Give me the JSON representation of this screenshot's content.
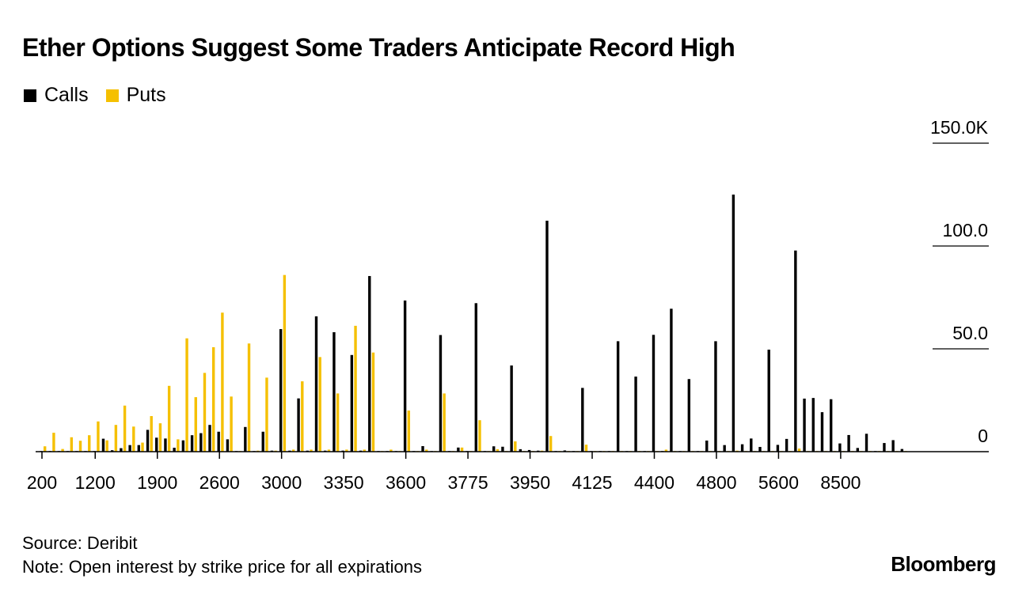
{
  "title": "Ether Options Suggest Some Traders Anticipate Record High",
  "footer": {
    "source": "Source: Deribit",
    "note": "Note: Open interest by strike price for all expirations",
    "logo": "Bloomberg"
  },
  "chart_data": {
    "type": "bar",
    "title": "Ether Options Suggest Some Traders Anticipate Record High",
    "xlabel": "",
    "ylabel": "",
    "ylim": [
      0,
      150
    ],
    "y_ticks": [
      {
        "value": 150,
        "label": "150.0K"
      },
      {
        "value": 100,
        "label": "100.0"
      },
      {
        "value": 50,
        "label": "50.0"
      },
      {
        "value": 0,
        "label": "0"
      }
    ],
    "y_axis_side": "right",
    "legend_placement": "top-left",
    "x_tick_labels": [
      {
        "index": 0,
        "label": "200"
      },
      {
        "index": 6,
        "label": "1200"
      },
      {
        "index": 13,
        "label": "1900"
      },
      {
        "index": 20,
        "label": "2600"
      },
      {
        "index": 27,
        "label": "3000"
      },
      {
        "index": 34,
        "label": "3350"
      },
      {
        "index": 41,
        "label": "3600"
      },
      {
        "index": 48,
        "label": "3775"
      },
      {
        "index": 55,
        "label": "3950"
      },
      {
        "index": 62,
        "label": "4125"
      },
      {
        "index": 69,
        "label": "4400"
      },
      {
        "index": 76,
        "label": "4800"
      },
      {
        "index": 83,
        "label": "5600"
      },
      {
        "index": 90,
        "label": "8500"
      }
    ],
    "series": [
      {
        "name": "Calls",
        "color": "#000000",
        "values": [
          0.3,
          0.3,
          0.3,
          0.3,
          0.3,
          0.3,
          0.3,
          6.3,
          0.7,
          1.7,
          3.2,
          3.2,
          10.6,
          6.8,
          6.4,
          1.9,
          5.5,
          8,
          9,
          13,
          9.7,
          6,
          0.3,
          12,
          0.3,
          9.7,
          0.5,
          59.6,
          0.5,
          25.9,
          0.5,
          65.8,
          0.5,
          58.1,
          0.5,
          47,
          0.5,
          85.4,
          0.3,
          0.3,
          0.3,
          73.5,
          0.3,
          2.7,
          0.3,
          56.7,
          0.3,
          2,
          0.3,
          72.2,
          0.3,
          2.6,
          2.4,
          41.9,
          1.2,
          0.8,
          0.5,
          112.3,
          0.3,
          0.6,
          0.3,
          31,
          0.3,
          0.3,
          0.3,
          53.7,
          0.3,
          36.5,
          0.3,
          56.8,
          0.3,
          69.5,
          0.3,
          35.3,
          0.3,
          5.4,
          53.7,
          3.2,
          125,
          3.6,
          6.4,
          2.3,
          49.6,
          3.3,
          6.2,
          97.8,
          25.8,
          26.1,
          19.2,
          25.5,
          4,
          8.1,
          1.8,
          8.7,
          0.3,
          4.2,
          5.6,
          1.3
        ]
      },
      {
        "name": "Puts",
        "color": "#f5c000",
        "values": [
          2.6,
          9.2,
          1.3,
          7,
          5.3,
          8,
          14.7,
          5.5,
          13,
          22.4,
          12.2,
          4.4,
          17.3,
          13.8,
          32,
          6,
          55.1,
          26.5,
          38.3,
          50.8,
          67.6,
          26.8,
          0.3,
          52.6,
          0.5,
          36,
          0.5,
          85.9,
          1,
          34.2,
          1,
          46,
          1,
          28.3,
          1,
          61.2,
          1,
          48.2,
          0.3,
          1,
          0.3,
          20,
          0.3,
          1,
          0.3,
          28.3,
          0.3,
          2,
          0.3,
          15.3,
          0.3,
          1.2,
          0.3,
          5,
          0.3,
          0.3,
          0.5,
          7.6,
          0.3,
          0.3,
          0.3,
          3.4,
          0.3,
          0.3,
          0.3,
          0.3,
          0.3,
          0.3,
          0.3,
          0.3,
          1,
          0.3,
          0.3,
          0.3,
          0.3,
          0.3,
          0.3,
          0.3,
          0.5,
          0.3,
          0.3,
          0.3,
          0.3,
          0.3,
          0.3,
          1.5,
          0.3,
          0.3,
          0.3,
          0.3,
          0.3,
          0.3,
          0.3,
          0.3,
          0.3,
          0.3,
          0.3,
          0.3
        ]
      }
    ]
  }
}
